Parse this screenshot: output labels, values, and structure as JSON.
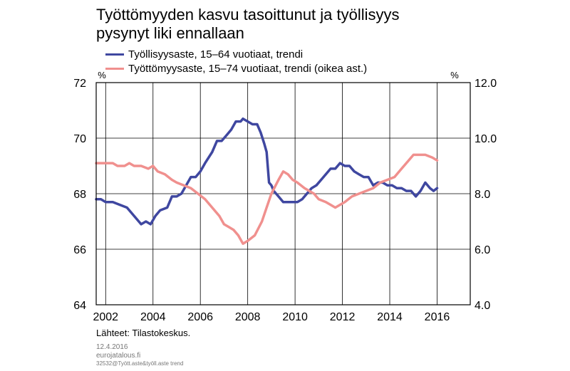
{
  "chart_data": {
    "type": "line",
    "title": "Työttömyyden kasvu tasoittunut ja työllisyys pysynyt liki ennallaan",
    "title_lines": [
      "Työttömyyden kasvu tasoittunut ja työllisyys",
      "pysynyt liki ennallaan"
    ],
    "left_axis": {
      "unit": "%",
      "ylim": [
        64,
        72
      ],
      "ticks": [
        "64",
        "66",
        "68",
        "70",
        "72"
      ]
    },
    "right_axis": {
      "unit": "%",
      "ylim": [
        4.0,
        12.0
      ],
      "ticks": [
        "4.0",
        "6.0",
        "8.0",
        "10.0",
        "12.0"
      ]
    },
    "x_axis": {
      "xlim": [
        2001.6,
        2017.4
      ],
      "ticks": [
        "2002",
        "2004",
        "2006",
        "2008",
        "2010",
        "2012",
        "2014",
        "2016"
      ]
    },
    "grid": true,
    "legend_position": "top-left",
    "series": [
      {
        "name": "Työllisyysaste, 15–64 vuotiaat, trendi",
        "axis": "left",
        "color": "#3f47a0",
        "points": [
          [
            2001.6,
            67.8
          ],
          [
            2001.8,
            67.8
          ],
          [
            2002.0,
            67.7
          ],
          [
            2002.3,
            67.7
          ],
          [
            2002.6,
            67.6
          ],
          [
            2002.9,
            67.5
          ],
          [
            2003.2,
            67.2
          ],
          [
            2003.5,
            66.9
          ],
          [
            2003.7,
            67.0
          ],
          [
            2003.9,
            66.9
          ],
          [
            2004.1,
            67.2
          ],
          [
            2004.3,
            67.4
          ],
          [
            2004.6,
            67.5
          ],
          [
            2004.8,
            67.9
          ],
          [
            2005.0,
            67.9
          ],
          [
            2005.2,
            68.0
          ],
          [
            2005.4,
            68.3
          ],
          [
            2005.6,
            68.6
          ],
          [
            2005.8,
            68.6
          ],
          [
            2006.0,
            68.8
          ],
          [
            2006.2,
            69.1
          ],
          [
            2006.5,
            69.5
          ],
          [
            2006.7,
            69.9
          ],
          [
            2006.9,
            69.9
          ],
          [
            2007.1,
            70.1
          ],
          [
            2007.3,
            70.3
          ],
          [
            2007.5,
            70.6
          ],
          [
            2007.7,
            70.6
          ],
          [
            2007.8,
            70.7
          ],
          [
            2008.0,
            70.6
          ],
          [
            2008.2,
            70.5
          ],
          [
            2008.4,
            70.5
          ],
          [
            2008.55,
            70.2
          ],
          [
            2008.7,
            69.8
          ],
          [
            2008.8,
            69.5
          ],
          [
            2008.9,
            68.4
          ],
          [
            2009.0,
            68.3
          ],
          [
            2009.1,
            68.1
          ],
          [
            2009.3,
            67.9
          ],
          [
            2009.5,
            67.7
          ],
          [
            2009.8,
            67.7
          ],
          [
            2010.1,
            67.7
          ],
          [
            2010.3,
            67.8
          ],
          [
            2010.5,
            68.0
          ],
          [
            2010.7,
            68.2
          ],
          [
            2010.9,
            68.3
          ],
          [
            2011.1,
            68.5
          ],
          [
            2011.3,
            68.7
          ],
          [
            2011.5,
            68.9
          ],
          [
            2011.7,
            68.9
          ],
          [
            2011.9,
            69.1
          ],
          [
            2012.1,
            69.0
          ],
          [
            2012.3,
            69.0
          ],
          [
            2012.5,
            68.8
          ],
          [
            2012.7,
            68.7
          ],
          [
            2012.9,
            68.6
          ],
          [
            2013.1,
            68.6
          ],
          [
            2013.3,
            68.3
          ],
          [
            2013.5,
            68.4
          ],
          [
            2013.7,
            68.4
          ],
          [
            2013.9,
            68.3
          ],
          [
            2014.1,
            68.3
          ],
          [
            2014.3,
            68.2
          ],
          [
            2014.5,
            68.2
          ],
          [
            2014.7,
            68.1
          ],
          [
            2014.9,
            68.1
          ],
          [
            2015.1,
            67.9
          ],
          [
            2015.3,
            68.1
          ],
          [
            2015.5,
            68.4
          ],
          [
            2015.7,
            68.2
          ],
          [
            2015.85,
            68.1
          ],
          [
            2016.0,
            68.2
          ]
        ]
      },
      {
        "name": "Työttömyysaste, 15–74 vuotiaat, trendi (oikea ast.)",
        "axis": "right",
        "color": "#f0908e",
        "points": [
          [
            2001.6,
            9.1
          ],
          [
            2002.0,
            9.1
          ],
          [
            2002.3,
            9.1
          ],
          [
            2002.5,
            9.0
          ],
          [
            2002.8,
            9.0
          ],
          [
            2003.0,
            9.1
          ],
          [
            2003.2,
            9.0
          ],
          [
            2003.5,
            9.0
          ],
          [
            2003.8,
            8.9
          ],
          [
            2004.0,
            9.0
          ],
          [
            2004.2,
            8.8
          ],
          [
            2004.5,
            8.7
          ],
          [
            2004.8,
            8.5
          ],
          [
            2005.0,
            8.4
          ],
          [
            2005.3,
            8.3
          ],
          [
            2005.6,
            8.2
          ],
          [
            2005.9,
            8.0
          ],
          [
            2006.2,
            7.8
          ],
          [
            2006.5,
            7.5
          ],
          [
            2006.8,
            7.2
          ],
          [
            2007.0,
            6.9
          ],
          [
            2007.2,
            6.8
          ],
          [
            2007.4,
            6.7
          ],
          [
            2007.6,
            6.5
          ],
          [
            2007.8,
            6.2
          ],
          [
            2008.0,
            6.3
          ],
          [
            2008.3,
            6.5
          ],
          [
            2008.6,
            7.0
          ],
          [
            2008.8,
            7.5
          ],
          [
            2009.0,
            8.0
          ],
          [
            2009.3,
            8.5
          ],
          [
            2009.5,
            8.8
          ],
          [
            2009.7,
            8.7
          ],
          [
            2009.9,
            8.5
          ],
          [
            2010.1,
            8.4
          ],
          [
            2010.4,
            8.2
          ],
          [
            2010.6,
            8.1
          ],
          [
            2010.8,
            8.0
          ],
          [
            2011.0,
            7.8
          ],
          [
            2011.3,
            7.7
          ],
          [
            2011.5,
            7.6
          ],
          [
            2011.7,
            7.5
          ],
          [
            2011.9,
            7.6
          ],
          [
            2012.1,
            7.7
          ],
          [
            2012.4,
            7.9
          ],
          [
            2012.7,
            8.0
          ],
          [
            2013.0,
            8.1
          ],
          [
            2013.3,
            8.2
          ],
          [
            2013.6,
            8.4
          ],
          [
            2013.9,
            8.5
          ],
          [
            2014.2,
            8.6
          ],
          [
            2014.5,
            8.9
          ],
          [
            2014.8,
            9.2
          ],
          [
            2015.0,
            9.4
          ],
          [
            2015.3,
            9.4
          ],
          [
            2015.5,
            9.4
          ],
          [
            2015.8,
            9.3
          ],
          [
            2016.0,
            9.2
          ]
        ]
      }
    ],
    "source": "Lähteet:  Tilastokeskus.",
    "footnotes": [
      "12.4.2016",
      "eurojatalous.fi",
      "32532@Tyött.aste&työll.aste trend"
    ]
  }
}
